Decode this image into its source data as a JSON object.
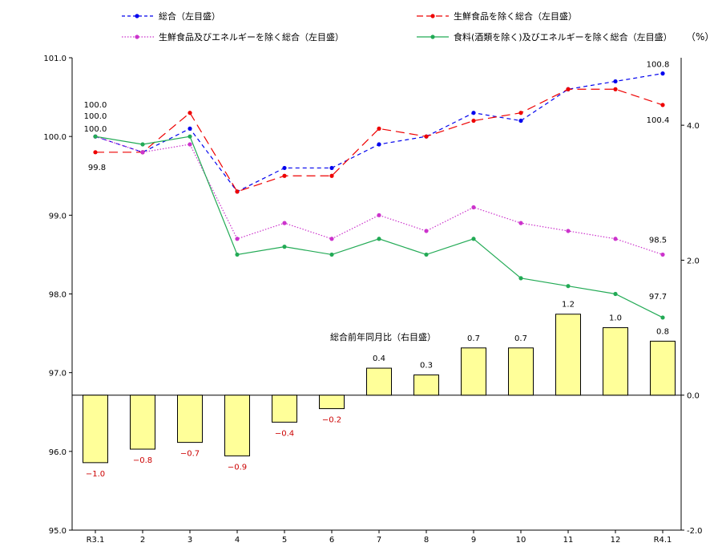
{
  "chart_data": {
    "type": "line+bar",
    "categories": [
      "R3.1",
      "2",
      "3",
      "4",
      "5",
      "6",
      "7",
      "8",
      "9",
      "10",
      "11",
      "12",
      "R4.1"
    ],
    "left_axis": {
      "ylim": [
        95.0,
        101.0
      ],
      "ticks": [
        "95.0",
        "96.0",
        "97.0",
        "98.0",
        "99.0",
        "100.0",
        "101.0"
      ],
      "tick_values": [
        95,
        96,
        97,
        98,
        99,
        100,
        101
      ]
    },
    "right_axis": {
      "unit_label": "（%）",
      "ylim": [
        -2.0,
        5.0
      ],
      "ticks": [
        "-2.0",
        "0.0",
        "2.0",
        "4.0"
      ],
      "tick_values": [
        -2,
        0,
        2,
        4
      ]
    },
    "series": [
      {
        "name": "総合（左目盛）",
        "style": "dashed",
        "color": "#0000ee",
        "values": [
          100.0,
          99.8,
          100.1,
          99.3,
          99.6,
          99.6,
          99.9,
          100.0,
          100.3,
          100.2,
          100.6,
          100.7,
          100.8
        ]
      },
      {
        "name": "生鮮食品を除く総合（左目盛）",
        "style": "longdash",
        "color": "#ee0000",
        "values": [
          99.8,
          99.8,
          100.3,
          99.3,
          99.5,
          99.5,
          100.1,
          100.0,
          100.2,
          100.3,
          100.6,
          100.6,
          100.4
        ]
      },
      {
        "name": "生鮮食品及びエネルギーを除く総合（左目盛）",
        "style": "dotted",
        "color": "#cc33cc",
        "values": [
          100.0,
          99.8,
          99.9,
          98.7,
          98.9,
          98.7,
          99.0,
          98.8,
          99.1,
          98.9,
          98.8,
          98.7,
          98.5
        ]
      },
      {
        "name": "食料(酒類を除く)及びエネルギーを除く総合（左目盛）",
        "style": "solid",
        "color": "#22aa55",
        "values": [
          100.0,
          99.9,
          100.0,
          98.5,
          98.6,
          98.5,
          98.7,
          98.5,
          98.7,
          98.2,
          98.1,
          98.0,
          97.7
        ]
      }
    ],
    "bar_series": {
      "name": "総合前年同月比（右目盛）",
      "fill": "#ffff99",
      "values": [
        -1.0,
        -0.8,
        -0.7,
        -0.9,
        -0.4,
        -0.2,
        0.4,
        0.3,
        0.7,
        0.7,
        1.2,
        1.0,
        0.8
      ],
      "labels": [
        "−1.0",
        "−0.8",
        "−0.7",
        "−0.9",
        "−0.4",
        "−0.2",
        "0.4",
        "0.3",
        "0.7",
        "0.7",
        "1.2",
        "1.0",
        "0.8"
      ]
    },
    "line_labels": {
      "start_top": "100.0",
      "start_mid": "100.0",
      "start_low": "100.0",
      "start_red": "99.8",
      "end_blue": "100.8",
      "end_red": "100.4",
      "end_magenta": "98.5",
      "end_green": "97.7"
    },
    "colors": {
      "negative_label": "#cc0000",
      "positive_label": "#000000",
      "axis": "#000000"
    }
  }
}
